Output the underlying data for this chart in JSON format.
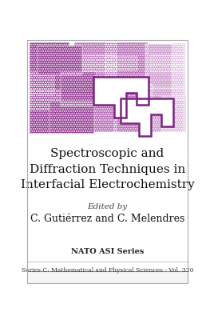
{
  "bg_color": "#ffffff",
  "title": "Spectroscopic and\nDiffraction Techniques in\nInterfacial Electrochemistry",
  "edited_by": "Edited by",
  "authors": "C. Gutiérrez and C. Melendres",
  "nato_series": "NATO ASI Series",
  "bottom_text": "Series C: Mathematical and Physical Sciences - Vol. 320",
  "title_fontsize": 11.0,
  "authors_fontsize": 9.0,
  "purple_dark": "#8B2F8B",
  "purple_mid": "#B060B0",
  "purple_light": "#C890C8",
  "purple_very_light": "#DDB8DD",
  "purple_outline": "#7B2580"
}
